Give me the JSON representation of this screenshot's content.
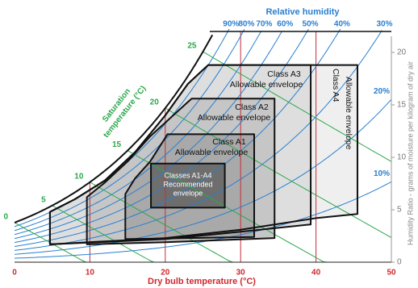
{
  "chart_data": {
    "type": "psychrometric",
    "rh_label": "Relative humidity",
    "xlabel": "Dry bulb temperature (°C)",
    "ylabel": "Humidity Ratio - grams of moisture per kilogram of dry air",
    "saturation_label": [
      "Saturation",
      "temperature (°C)"
    ],
    "xlim": [
      0,
      50
    ],
    "xticks": [
      0,
      10,
      20,
      30,
      40,
      50
    ],
    "ylim": [
      0,
      22
    ],
    "yticks": [
      0,
      5,
      10,
      15,
      20
    ],
    "rh": {
      "values": [
        90,
        80,
        70,
        60,
        50,
        40,
        30,
        20,
        10
      ],
      "value_labels": [
        "90%",
        "80%",
        "70%",
        "60%",
        "50%",
        "40%",
        "30%",
        "20%",
        "10%"
      ],
      "color": "#2a7fd0"
    },
    "saturation_temps": {
      "values": [
        0,
        5,
        10,
        15,
        20,
        25
      ],
      "color": "#2aa84a"
    },
    "envelopes": [
      {
        "labels": [
          "Class A4",
          "Allowable envelope"
        ],
        "color": "#efefef",
        "x": [
          4.7,
          4.7,
          8,
          12,
          16,
          20,
          23,
          25.7,
          45.5,
          45.5,
          40,
          30,
          20
        ],
        "y": [
          1.7,
          4.8,
          6,
          7.8,
          10.5,
          14,
          17,
          18.8,
          18.8,
          4.6,
          4.2,
          3.1,
          2.3
        ]
      },
      {
        "labels": [
          "Class A3",
          "Allowable envelope"
        ],
        "color": "#dedede",
        "x": [
          4.7,
          4.7,
          8,
          12,
          16,
          20,
          23,
          25.7,
          39.3,
          39.3,
          30,
          20
        ],
        "y": [
          1.7,
          4.8,
          6,
          7.8,
          10.5,
          14,
          17,
          18.8,
          18.8,
          3.6,
          2.9,
          2.2
        ]
      },
      {
        "labels": [
          "Class A2",
          "Allowable envelope"
        ],
        "color": "#c6c6c6",
        "x": [
          9.6,
          9.6,
          12,
          15,
          18,
          23.5,
          34.5,
          34.5,
          20
        ],
        "y": [
          1.7,
          6.2,
          7.6,
          9.6,
          12,
          15.6,
          15.6,
          2.3,
          1.9
        ]
      },
      {
        "labels": [
          "Class A1",
          "Allowable envelope"
        ],
        "color": "#a9a9a9",
        "x": [
          14.7,
          14.7,
          16,
          18,
          20.3,
          31.8,
          31.8
        ],
        "y": [
          2.2,
          6.5,
          8,
          9.6,
          12.2,
          12.2,
          2.4
        ]
      },
      {
        "labels": [
          "Classes A1-A4",
          "Recommended",
          "envelope"
        ],
        "color": "#6e6e6e",
        "x": [
          18.1,
          18.1,
          27.9,
          27.9
        ],
        "y": [
          5.2,
          9.4,
          9.4,
          5.2
        ]
      }
    ]
  }
}
